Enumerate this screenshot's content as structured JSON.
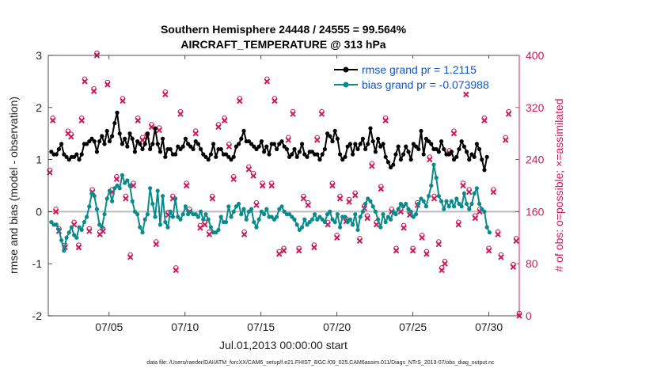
{
  "chart_data": {
    "type": "line",
    "title": "Southern Hemisphere 24448 / 24555 = 99.564%",
    "subtitle": "AIRCRAFT_TEMPERATURE @ 313 hPa",
    "xlabel": "Jul.01,2013 00:00:00 start",
    "ylabel": "rmse and bias (model - observation)",
    "y2label": "# of obs: o=possible; ×=assimilated",
    "footnote": "data file: /Users/raeder/DAI/ATM_forcXX/CAM6_setup/f.e21.FHIST_BGC.f09_025.CAM6assim.011/Diags_NTrS_2013-07/obs_diag_output.nc",
    "xlim": [
      1,
      32
    ],
    "ylim": [
      -2,
      3
    ],
    "y2lim": [
      0,
      400
    ],
    "x_ticks": [
      5,
      10,
      15,
      20,
      25,
      30
    ],
    "x_tick_labels": [
      "07/05",
      "07/10",
      "07/15",
      "07/20",
      "07/25",
      "07/30"
    ],
    "y_ticks": [
      -2,
      -1,
      0,
      1,
      2,
      3
    ],
    "y_tick_labels": [
      "-2",
      "-1",
      "0",
      "1",
      "2",
      "3"
    ],
    "y2_ticks": [
      0,
      80,
      160,
      240,
      320,
      400
    ],
    "y2_tick_labels": [
      "0",
      "80",
      "160",
      "240",
      "320",
      "400"
    ],
    "legend_position": "top-right",
    "series": [
      {
        "name": "rmse grand pr = 1.2115",
        "color": "#000000",
        "values": [
          1.15,
          1.1,
          1.1,
          1.2,
          1.3,
          1.1,
          1.05,
          1.0,
          1.05,
          1.05,
          1.1,
          1.0,
          1.1,
          1.3,
          1.3,
          1.35,
          1.4,
          1.35,
          1.15,
          1.35,
          1.45,
          1.3,
          1.55,
          1.35,
          1.45,
          1.7,
          1.9,
          1.5,
          1.3,
          1.4,
          1.25,
          1.5,
          1.4,
          1.15,
          1.35,
          1.3,
          1.2,
          1.3,
          1.5,
          1.2,
          1.3,
          1.6,
          1.3,
          1.15,
          1.4,
          1.05,
          1.2,
          1.2,
          1.1,
          1.1,
          1.25,
          1.2,
          1.25,
          1.4,
          1.3,
          1.25,
          1.2,
          1.35,
          1.3,
          1.2,
          1.1,
          1.05,
          1.0,
          1.1,
          1.3,
          1.05,
          1.2,
          1.2,
          1.1,
          1.1,
          1.05,
          1.0,
          1.05,
          1.25,
          1.3,
          1.4,
          1.55,
          1.35,
          1.35,
          1.3,
          1.25,
          1.2,
          1.25,
          1.35,
          1.15,
          1.25,
          1.1,
          1.3,
          1.3,
          1.2,
          1.3,
          1.35,
          1.25,
          1.2,
          1.05,
          1.1,
          1.2,
          1.05,
          1.15,
          1.3,
          1.1,
          1.05,
          1.15,
          1.15,
          1.1,
          1.1,
          1.0,
          1.1,
          1.2,
          1.5,
          1.45,
          1.35,
          1.55,
          1.4,
          1.1,
          1.0,
          1.05,
          1.25,
          1.3,
          1.1,
          1.3,
          1.2,
          1.3,
          1.4,
          1.2,
          1.3,
          1.6,
          1.35,
          1.15,
          1.4,
          1.25,
          1.3,
          1.05,
          0.95,
          0.85,
          0.9,
          1.1,
          1.25,
          1.0,
          1.1,
          1.25,
          1.15,
          1.0,
          1.3,
          1.25,
          1.2,
          1.55,
          1.1,
          1.4,
          1.35,
          1.3,
          1.2,
          1.2,
          1.15,
          1.35,
          1.2,
          1.1,
          1.1,
          1.15,
          1.0,
          1.05,
          1.2,
          1.35,
          1.25,
          1.15,
          1.0,
          1.1,
          1.05,
          1.3,
          1.2,
          1.0,
          0.8,
          1.05
        ],
        "start": 1.2,
        "step": 0.1667
      },
      {
        "name": "bias grand pr = -0.073988",
        "color": "#0a8a8a",
        "values": [
          -0.2,
          -0.25,
          -0.25,
          -0.35,
          -0.55,
          -0.75,
          -0.5,
          -0.4,
          -0.3,
          -0.45,
          -0.5,
          -0.3,
          -0.35,
          -0.2,
          -0.1,
          0.1,
          0.35,
          0.3,
          0.05,
          -0.25,
          -0.3,
          -0.05,
          0.25,
          0.4,
          0.2,
          0.45,
          0.5,
          0.45,
          0.7,
          0.55,
          0.6,
          0.5,
          0.2,
          0.0,
          -0.05,
          -0.3,
          -0.4,
          -0.15,
          -0.05,
          0.45,
          0.15,
          -0.1,
          0.4,
          -0.25,
          0.3,
          -0.2,
          -0.3,
          0.0,
          -0.1,
          0.25,
          -0.1,
          -0.15,
          -0.05,
          0.1,
          -0.05,
          0.0,
          -0.05,
          -0.05,
          -0.1,
          0.0,
          -0.15,
          -0.05,
          -0.15,
          -0.3,
          -0.4,
          -0.4,
          -0.35,
          -0.1,
          -0.2,
          -0.2,
          0.1,
          -0.1,
          0.0,
          0.1,
          0.15,
          -0.05,
          0.05,
          -0.15,
          0.0,
          0.05,
          -0.2,
          -0.3,
          -0.15,
          0.0,
          -0.05,
          0.05,
          -0.1,
          -0.1,
          -0.15,
          -0.1,
          0.05,
          0.1,
          0.0,
          -0.05,
          -0.05,
          -0.1,
          -0.15,
          -0.25,
          -0.35,
          -0.3,
          -0.15,
          -0.25,
          -0.2,
          -0.15,
          -0.05,
          -0.15,
          -0.1,
          -0.15,
          -0.2,
          -0.05,
          0.0,
          -0.15,
          -0.2,
          -0.05,
          -0.3,
          -0.1,
          -0.1,
          -0.2,
          -0.15,
          -0.25,
          -0.05,
          -0.35,
          -0.1,
          0.0,
          0.15,
          0.25,
          0.2,
          0.1,
          0.0,
          -0.15,
          -0.3,
          -0.05,
          -0.2,
          -0.1,
          -0.15,
          0.0,
          -0.05,
          0.05,
          0.15,
          0.1,
          0.15,
          0.05,
          0.0,
          -0.1,
          -0.05,
          0.15,
          0.25,
          0.2,
          0.1,
          0.3,
          0.5,
          0.9,
          0.65,
          0.3,
          0.2,
          0.05,
          0.2,
          0.1,
          0.2,
          0.1,
          0.25,
          0.15,
          0.1,
          0.35,
          0.15,
          0.05,
          0.15,
          0.35,
          0.45,
          0.15,
          0.05,
          0.0,
          -0.3,
          -0.4
        ],
        "start": 1.2,
        "step": 0.1667
      }
    ],
    "obs_counts": {
      "name": "# of obs",
      "color": "#cc1a5a",
      "possible_markers": "o",
      "assimilated_markers": "x",
      "points": [
        [
          1.1,
          220
        ],
        [
          1.3,
          300
        ],
        [
          1.5,
          160
        ],
        [
          1.7,
          130
        ],
        [
          2.1,
          105
        ],
        [
          2.3,
          280
        ],
        [
          2.5,
          275
        ],
        [
          2.7,
          140
        ],
        [
          3.0,
          105
        ],
        [
          3.2,
          300
        ],
        [
          3.4,
          360
        ],
        [
          3.7,
          130
        ],
        [
          3.9,
          190
        ],
        [
          4.0,
          345
        ],
        [
          4.2,
          400
        ],
        [
          4.4,
          125
        ],
        [
          4.6,
          130
        ],
        [
          4.9,
          355
        ],
        [
          5.2,
          190
        ],
        [
          5.5,
          210
        ],
        [
          5.9,
          330
        ],
        [
          6.1,
          180
        ],
        [
          6.4,
          90
        ],
        [
          6.6,
          200
        ],
        [
          6.9,
          300
        ],
        [
          7.2,
          270
        ],
        [
          7.5,
          275
        ],
        [
          7.8,
          290
        ],
        [
          8.1,
          110
        ],
        [
          8.3,
          285
        ],
        [
          8.7,
          340
        ],
        [
          8.9,
          155
        ],
        [
          9.2,
          180
        ],
        [
          9.4,
          70
        ],
        [
          9.7,
          310
        ],
        [
          10.1,
          200
        ],
        [
          10.3,
          160
        ],
        [
          10.7,
          280
        ],
        [
          11.0,
          135
        ],
        [
          11.3,
          140
        ],
        [
          11.6,
          125
        ],
        [
          11.8,
          180
        ],
        [
          12.2,
          290
        ],
        [
          12.6,
          300
        ],
        [
          12.9,
          260
        ],
        [
          13.2,
          210
        ],
        [
          13.6,
          330
        ],
        [
          13.9,
          125
        ],
        [
          14.2,
          225
        ],
        [
          14.5,
          215
        ],
        [
          14.7,
          170
        ],
        [
          15.1,
          200
        ],
        [
          15.4,
          360
        ],
        [
          15.7,
          200
        ],
        [
          15.9,
          330
        ],
        [
          16.2,
          95
        ],
        [
          16.5,
          100
        ],
        [
          16.8,
          270
        ],
        [
          17.1,
          310
        ],
        [
          17.5,
          100
        ],
        [
          17.8,
          180
        ],
        [
          18.1,
          170
        ],
        [
          18.5,
          105
        ],
        [
          18.7,
          270
        ],
        [
          19.0,
          310
        ],
        [
          19.4,
          140
        ],
        [
          19.7,
          200
        ],
        [
          20.0,
          120
        ],
        [
          20.2,
          180
        ],
        [
          20.6,
          145
        ],
        [
          20.8,
          175
        ],
        [
          21.2,
          185
        ],
        [
          21.5,
          115
        ],
        [
          21.8,
          165
        ],
        [
          22.0,
          150
        ],
        [
          22.3,
          230
        ],
        [
          22.6,
          140
        ],
        [
          22.9,
          195
        ],
        [
          23.2,
          300
        ],
        [
          23.6,
          160
        ],
        [
          23.9,
          100
        ],
        [
          24.2,
          160
        ],
        [
          24.4,
          135
        ],
        [
          24.8,
          155
        ],
        [
          25.0,
          100
        ],
        [
          25.3,
          170
        ],
        [
          25.6,
          120
        ],
        [
          25.9,
          95
        ],
        [
          26.1,
          240
        ],
        [
          26.4,
          180
        ],
        [
          26.7,
          110
        ],
        [
          26.9,
          70
        ],
        [
          27.1,
          80
        ],
        [
          27.4,
          250
        ],
        [
          27.7,
          280
        ],
        [
          28.0,
          140
        ],
        [
          28.3,
          200
        ],
        [
          28.5,
          340
        ],
        [
          28.7,
          190
        ],
        [
          29.1,
          150
        ],
        [
          29.4,
          160
        ],
        [
          29.7,
          300
        ],
        [
          30.0,
          100
        ],
        [
          30.3,
          190
        ],
        [
          30.6,
          125
        ],
        [
          30.8,
          90
        ],
        [
          31.1,
          270
        ],
        [
          31.3,
          310
        ],
        [
          31.6,
          75
        ],
        [
          31.8,
          115
        ],
        [
          32.0,
          0
        ]
      ]
    }
  }
}
